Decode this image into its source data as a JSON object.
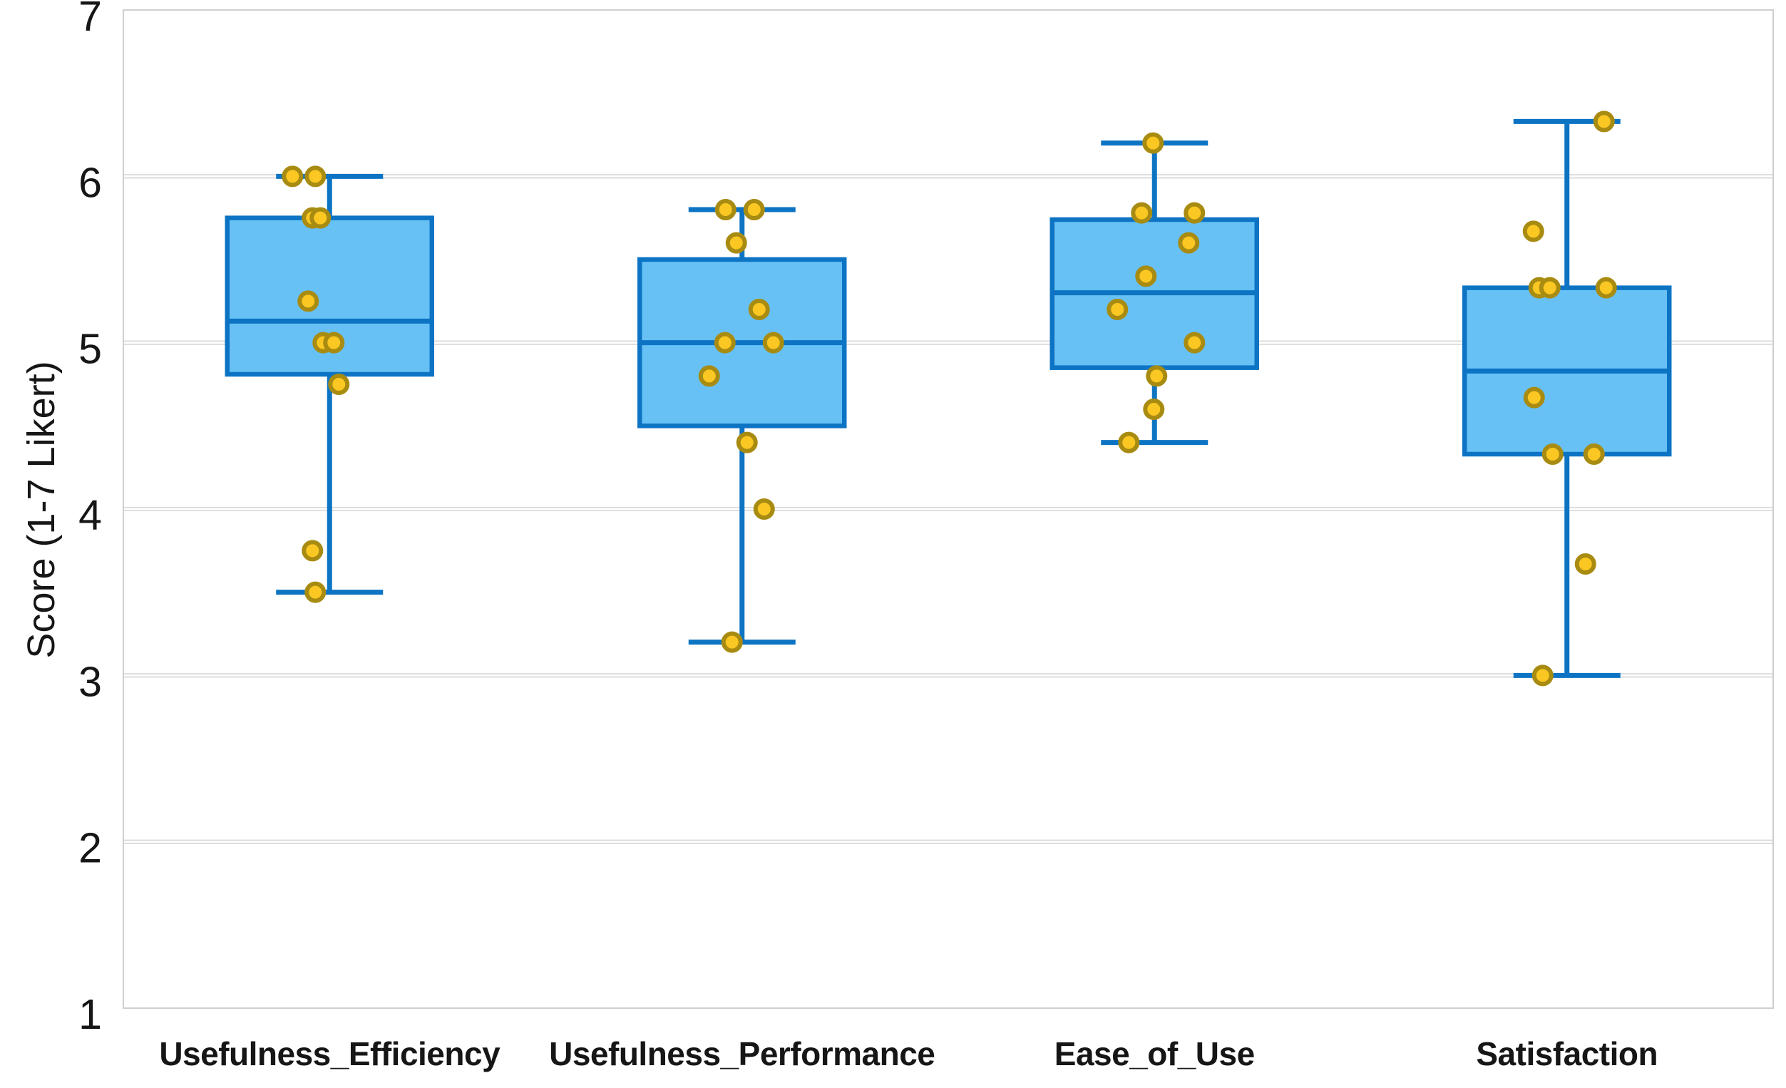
{
  "chart_data": {
    "type": "box",
    "title": "",
    "ylabel": "Score (1-7 Likert)",
    "xlabel": "",
    "ylim": [
      1,
      7
    ],
    "yticks": [
      1,
      2,
      3,
      4,
      5,
      6,
      7
    ],
    "grid": "horizontal",
    "legend": "none",
    "categories": [
      "Usefulness_Efficiency",
      "Usefulness_Performance",
      "Ease_of_Use",
      "Satisfaction"
    ],
    "series": [
      {
        "name": "Usefulness_Efficiency",
        "whisker_low": 3.5,
        "q1": 4.81,
        "median": 5.13,
        "q3": 5.75,
        "whisker_high": 6.0,
        "values": [
          6.0,
          6.0,
          5.75,
          5.75,
          5.25,
          5.0,
          5.0,
          4.75,
          3.75,
          3.5
        ],
        "points": [
          {
            "v": 6.0,
            "dx": -52
          },
          {
            "v": 6.0,
            "dx": -20
          },
          {
            "v": 5.75,
            "dx": -24
          },
          {
            "v": 5.75,
            "dx": -13
          },
          {
            "v": 5.25,
            "dx": -30
          },
          {
            "v": 5.0,
            "dx": -9
          },
          {
            "v": 5.0,
            "dx": 6
          },
          {
            "v": 4.75,
            "dx": 13
          },
          {
            "v": 3.75,
            "dx": -24
          },
          {
            "v": 3.5,
            "dx": -20
          }
        ]
      },
      {
        "name": "Usefulness_Performance",
        "whisker_low": 3.2,
        "q1": 4.5,
        "median": 5.0,
        "q3": 5.5,
        "whisker_high": 5.8,
        "values": [
          5.8,
          5.8,
          5.6,
          5.2,
          5.0,
          5.0,
          4.8,
          4.4,
          4.0,
          3.2
        ],
        "points": [
          {
            "v": 5.8,
            "dx": -23
          },
          {
            "v": 5.8,
            "dx": 17
          },
          {
            "v": 5.6,
            "dx": -8
          },
          {
            "v": 5.2,
            "dx": 24
          },
          {
            "v": 5.0,
            "dx": -24
          },
          {
            "v": 5.0,
            "dx": 44
          },
          {
            "v": 4.8,
            "dx": -46
          },
          {
            "v": 4.4,
            "dx": 7
          },
          {
            "v": 4.0,
            "dx": 31
          },
          {
            "v": 3.2,
            "dx": -14
          }
        ]
      },
      {
        "name": "Ease_of_Use",
        "whisker_low": 4.4,
        "q1": 4.85,
        "median": 5.3,
        "q3": 5.74,
        "whisker_high": 6.2,
        "values": [
          6.2,
          5.78,
          5.78,
          5.6,
          5.4,
          5.2,
          5.0,
          4.8,
          4.6,
          4.4
        ],
        "points": [
          {
            "v": 6.2,
            "dx": -2
          },
          {
            "v": 5.78,
            "dx": -18
          },
          {
            "v": 5.78,
            "dx": 56
          },
          {
            "v": 5.6,
            "dx": 48
          },
          {
            "v": 5.4,
            "dx": -12
          },
          {
            "v": 5.2,
            "dx": -52
          },
          {
            "v": 5.0,
            "dx": 56
          },
          {
            "v": 4.8,
            "dx": 3
          },
          {
            "v": 4.6,
            "dx": -1
          },
          {
            "v": 4.4,
            "dx": -36
          }
        ]
      },
      {
        "name": "Satisfaction",
        "whisker_low": 3.0,
        "q1": 4.33,
        "median": 4.83,
        "q3": 5.33,
        "whisker_high": 6.33,
        "values": [
          6.33,
          5.67,
          5.33,
          5.33,
          5.33,
          4.67,
          4.33,
          4.33,
          3.67,
          3.0
        ],
        "points": [
          {
            "v": 6.33,
            "dx": 52
          },
          {
            "v": 5.67,
            "dx": -47
          },
          {
            "v": 5.33,
            "dx": -39
          },
          {
            "v": 5.33,
            "dx": -24
          },
          {
            "v": 5.33,
            "dx": 55
          },
          {
            "v": 4.67,
            "dx": -46
          },
          {
            "v": 4.33,
            "dx": -20
          },
          {
            "v": 4.33,
            "dx": 38
          },
          {
            "v": 3.67,
            "dx": 26
          },
          {
            "v": 3.0,
            "dx": -34
          }
        ]
      }
    ],
    "colors": {
      "box_fill": "#67c1f5",
      "box_edge": "#0d74c4",
      "point_fill": "#fac723",
      "point_edge": "#a88b11",
      "grid": "#d9d9d9",
      "frame": "#cfcfcf",
      "text": "#161616"
    }
  }
}
